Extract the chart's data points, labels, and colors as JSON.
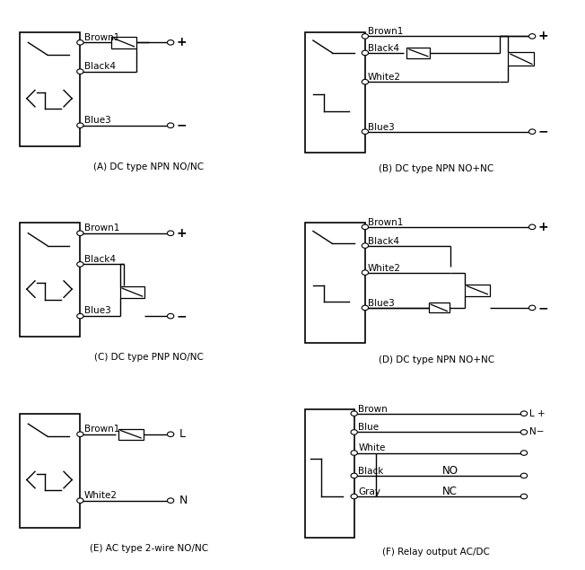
{
  "bg_color": "#ffffff",
  "panels": {
    "A": {
      "label": "(A) DC type NPN NO/NC",
      "col": 0,
      "row": 0
    },
    "B": {
      "label": "(B) DC type NPN NO+NC",
      "col": 1,
      "row": 0
    },
    "C": {
      "label": "(C) DC type PNP NO/NC",
      "col": 0,
      "row": 1
    },
    "D": {
      "label": "(D) DC type NPN NO+NC",
      "col": 1,
      "row": 1
    },
    "E": {
      "label": "(E) AC type 2-wire NO/NC",
      "col": 0,
      "row": 2
    },
    "F": {
      "label": "(F) Relay output AC/DC",
      "col": 1,
      "row": 2
    }
  }
}
